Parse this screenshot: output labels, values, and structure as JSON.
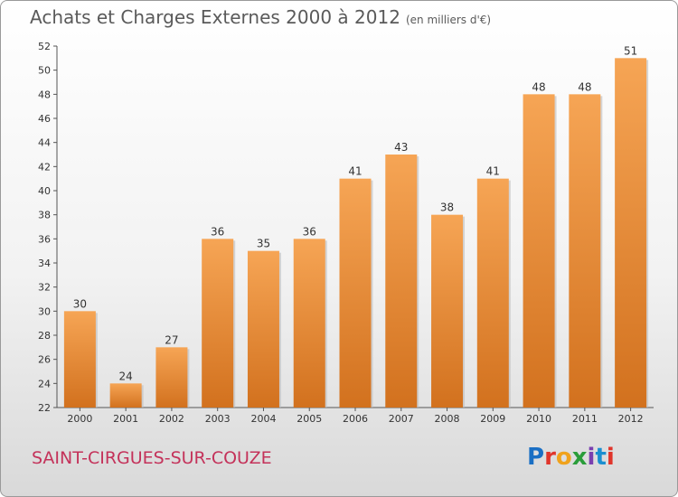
{
  "header": {
    "title": "Achats et Charges Externes 2000 à 2012",
    "subtitle": "(en milliers d'€)"
  },
  "commune": "SAINT-CIRGUES-SUR-COUZE",
  "logo_text": "Proxiti",
  "colors": {
    "bar_light": "#f6a555",
    "bar_dark": "#d2711e",
    "commune_text": "#c4325a"
  },
  "chart_data": {
    "type": "bar",
    "categories": [
      "2000",
      "2001",
      "2002",
      "2003",
      "2004",
      "2005",
      "2006",
      "2007",
      "2008",
      "2009",
      "2010",
      "2011",
      "2012"
    ],
    "values": [
      30,
      24,
      27,
      36,
      35,
      36,
      41,
      43,
      38,
      41,
      48,
      48,
      51
    ],
    "ylim": [
      22,
      52
    ],
    "yticks": [
      22,
      24,
      26,
      28,
      30,
      32,
      34,
      36,
      38,
      40,
      42,
      44,
      46,
      48,
      50,
      52
    ],
    "grid": false,
    "data_labels": true
  }
}
